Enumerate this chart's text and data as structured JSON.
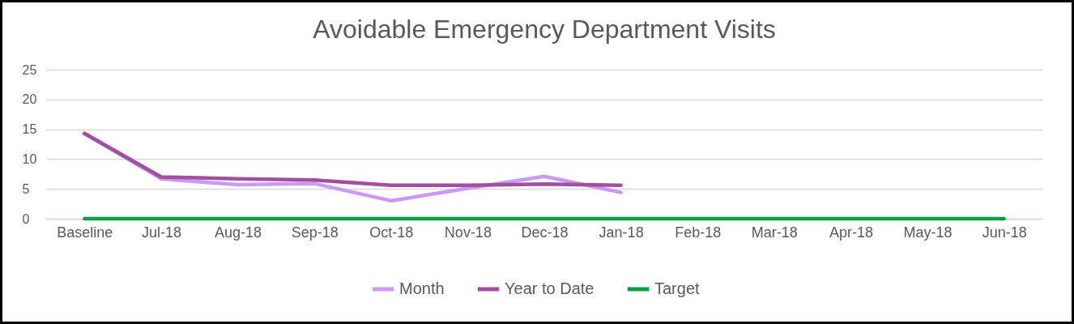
{
  "chart_data": {
    "type": "line",
    "title": "Avoidable Emergency Department Visits",
    "categories": [
      "Baseline",
      "Jul-18",
      "Aug-18",
      "Sep-18",
      "Oct-18",
      "Nov-18",
      "Dec-18",
      "Jan-18",
      "Feb-18",
      "Mar-18",
      "Apr-18",
      "May-18",
      "Jun-18"
    ],
    "series": [
      {
        "name": "Month",
        "color": "#cc99f9",
        "values": [
          14.3,
          6.7,
          5.7,
          5.9,
          3.0,
          5.1,
          7.1,
          4.4,
          null,
          null,
          null,
          null,
          null
        ]
      },
      {
        "name": "Year to Date",
        "color": "#a24fa0",
        "values": [
          14.3,
          7.0,
          6.7,
          6.5,
          5.6,
          5.6,
          5.8,
          5.6,
          null,
          null,
          null,
          null,
          null
        ]
      },
      {
        "name": "Target",
        "color": "#00a04a",
        "values": [
          0,
          0,
          0,
          0,
          0,
          0,
          0,
          0,
          0,
          0,
          0,
          0,
          0
        ]
      }
    ],
    "ylim": [
      0,
      25
    ],
    "yticks": [
      0,
      5,
      10,
      15,
      20,
      25
    ],
    "grid": "y",
    "legend": "bottom",
    "marker": "none",
    "line_style": "solid"
  }
}
